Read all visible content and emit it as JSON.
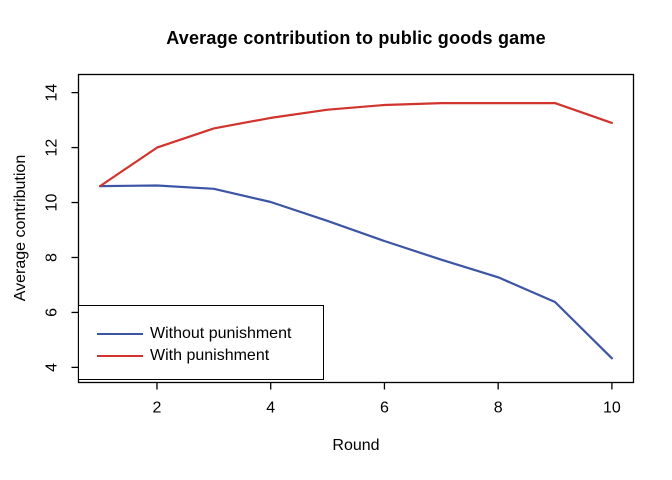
{
  "chart_data": {
    "type": "line",
    "title": "Average contribution to public goods game",
    "xlabel": "Round",
    "ylabel": "Average contribution",
    "x": [
      1,
      2,
      3,
      4,
      5,
      6,
      7,
      8,
      9,
      10
    ],
    "series": [
      {
        "name": "Without punishment",
        "color": "#3C55A5",
        "values": [
          10.6,
          10.62,
          10.5,
          10.02,
          9.33,
          8.6,
          7.92,
          7.28,
          6.38,
          4.33
        ]
      },
      {
        "name": "With punishment",
        "color": "#D0342C",
        "values": [
          10.6,
          12.0,
          12.7,
          13.08,
          13.38,
          13.55,
          13.62,
          13.62,
          13.62,
          12.9
        ]
      }
    ],
    "x_ticks": [
      2,
      4,
      6,
      8,
      10
    ],
    "y_ticks": [
      4,
      6,
      8,
      10,
      12,
      14
    ],
    "xlim": [
      0.62,
      10.38
    ],
    "ylim": [
      3.45,
      14.66
    ],
    "grid": false,
    "legend_position": "bottom-left",
    "legend_border": true,
    "background": "#FFFFFF",
    "axis_color": "#000000",
    "line_width": 2.2
  }
}
